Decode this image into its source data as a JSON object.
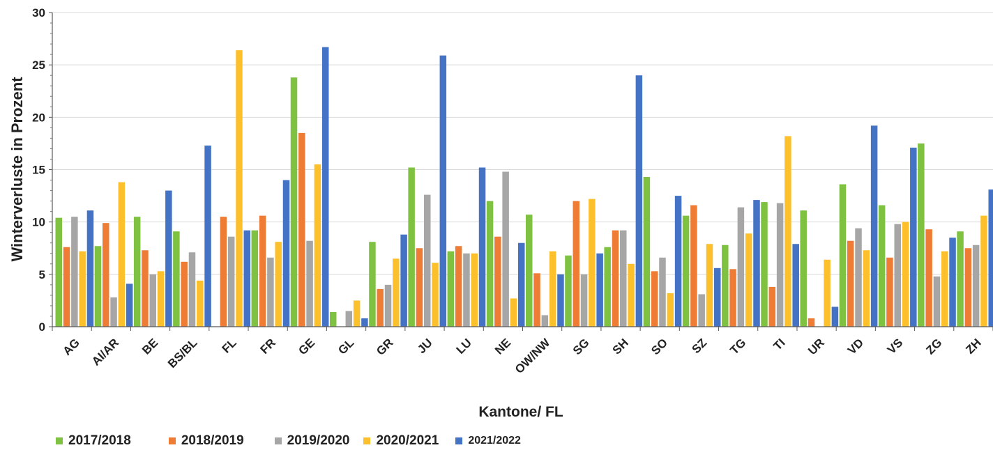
{
  "chart_data": {
    "type": "bar",
    "xlabel": "Kantone/ FL",
    "ylabel": "Winterverluste in Prozent",
    "ylim": [
      0,
      30
    ],
    "yticks": [
      "0",
      "5",
      "10",
      "15",
      "20",
      "25",
      "30"
    ],
    "grid": true,
    "legend_position": "bottom-left",
    "categories": [
      "AG",
      "AI/AR",
      "BE",
      "BS/BL",
      "FL",
      "FR",
      "GE",
      "GL",
      "GR",
      "JU",
      "LU",
      "NE",
      "OW/NW",
      "SG",
      "SH",
      "SO",
      "SZ",
      "TG",
      "TI",
      "UR",
      "VD",
      "VS",
      "ZG",
      "ZH"
    ],
    "series": [
      {
        "name": "2017/2018",
        "color": "#7fc241",
        "values": [
          10.4,
          7.7,
          10.5,
          9.1,
          null,
          9.2,
          23.8,
          1.4,
          8.1,
          15.2,
          7.2,
          12.0,
          10.7,
          6.8,
          7.6,
          14.3,
          10.6,
          7.8,
          11.9,
          11.1,
          13.6,
          11.6,
          17.5,
          9.1
        ]
      },
      {
        "name": "2018/2019",
        "color": "#ee7c35",
        "values": [
          7.6,
          9.9,
          7.3,
          6.2,
          10.5,
          10.6,
          18.5,
          null,
          3.6,
          7.5,
          7.7,
          8.6,
          5.1,
          12.0,
          9.2,
          5.3,
          11.6,
          5.5,
          3.8,
          0.8,
          8.2,
          6.6,
          9.3,
          7.5
        ]
      },
      {
        "name": "2019/2020",
        "color": "#a6a6a6",
        "values": [
          10.5,
          2.8,
          5.0,
          7.1,
          8.6,
          6.6,
          8.2,
          1.5,
          4.0,
          12.6,
          7.0,
          14.8,
          1.1,
          5.0,
          9.2,
          6.6,
          3.1,
          11.4,
          11.8,
          null,
          9.4,
          9.8,
          4.8,
          7.8
        ]
      },
      {
        "name": "2020/2021",
        "color": "#fdc02d",
        "values": [
          7.2,
          13.8,
          5.3,
          4.4,
          26.4,
          8.1,
          15.5,
          2.5,
          6.5,
          6.1,
          7.0,
          2.7,
          7.2,
          12.2,
          6.0,
          3.2,
          7.9,
          8.9,
          18.2,
          6.4,
          7.3,
          10.0,
          7.2,
          10.6
        ]
      },
      {
        "name": "2021/2022",
        "color": "#4472c4",
        "values": [
          11.1,
          4.1,
          13.0,
          17.3,
          9.2,
          14.0,
          26.7,
          0.8,
          8.8,
          25.9,
          15.2,
          8.0,
          5.0,
          7.0,
          24.0,
          12.5,
          5.6,
          12.1,
          7.9,
          1.9,
          19.2,
          17.1,
          8.5,
          13.1
        ]
      }
    ]
  }
}
